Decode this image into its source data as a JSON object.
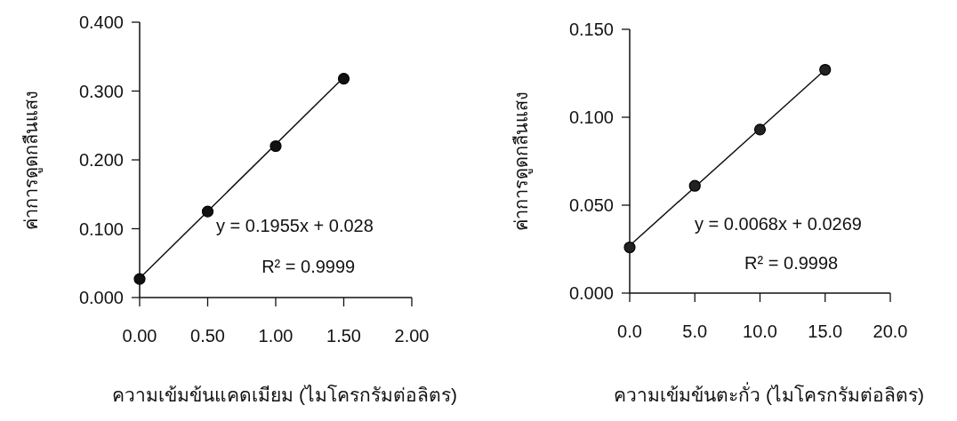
{
  "chart_data": [
    {
      "type": "scatter",
      "xlabel": "ความเข้มข้นแคดเมียม (ไมโครกรัมต่อลิตร)",
      "ylabel": "ค่าการดูดกลืนแสง",
      "x": [
        0,
        0.5,
        1.0,
        1.5
      ],
      "series": [
        {
          "type": "scatter",
          "color": "#111111",
          "marker": "circle",
          "values": [
            0.027,
            0.125,
            0.22,
            0.318
          ]
        },
        {
          "type": "line",
          "color": "#111111",
          "x": [
            0,
            1.5
          ],
          "values": [
            0.028,
            0.32
          ]
        }
      ],
      "line_style": "solid",
      "xlim": [
        0,
        2.0
      ],
      "xticks": [
        {
          "value": 0,
          "label": "0.00"
        },
        {
          "value": 0.5,
          "label": "0.50"
        },
        {
          "value": 1.0,
          "label": "1.00"
        },
        {
          "value": 1.5,
          "label": "1.50"
        },
        {
          "value": 2.0,
          "label": "2.00"
        }
      ],
      "ylim": [
        0,
        0.4
      ],
      "yticks": [
        {
          "value": 0,
          "label": "0.000"
        },
        {
          "value": 0.1,
          "label": "0.100"
        },
        {
          "value": 0.2,
          "label": "0.200"
        },
        {
          "value": 0.3,
          "label": "0.300"
        },
        {
          "value": 0.4,
          "label": "0.400"
        }
      ],
      "annotations": [
        "y = 0.1955x + 0.028",
        "R² = 0.9999"
      ]
    },
    {
      "type": "scatter",
      "xlabel": "ความเข้มข้นตะกั่ว (ไมโครกรัมต่อลิตร)",
      "ylabel": "ค่าการดูดกลืนแสง",
      "x": [
        0,
        5,
        10,
        15
      ],
      "series": [
        {
          "type": "scatter",
          "color": "#222222",
          "marker": "circle",
          "values": [
            0.026,
            0.061,
            0.093,
            0.127
          ]
        },
        {
          "type": "line",
          "color": "#111111",
          "x": [
            0,
            15
          ],
          "values": [
            0.027,
            0.127
          ]
        }
      ],
      "line_style": "solid",
      "xlim": [
        0,
        20
      ],
      "xticks": [
        {
          "value": 0,
          "label": "0.0"
        },
        {
          "value": 5,
          "label": "5.0"
        },
        {
          "value": 10,
          "label": "10.0"
        },
        {
          "value": 15,
          "label": "15.0"
        },
        {
          "value": 20,
          "label": "20.0"
        }
      ],
      "ylim": [
        0,
        0.15
      ],
      "yticks": [
        {
          "value": 0,
          "label": "0.000"
        },
        {
          "value": 0.05,
          "label": "0.050"
        },
        {
          "value": 0.1,
          "label": "0.100"
        },
        {
          "value": 0.15,
          "label": "0.150"
        }
      ],
      "annotations": [
        "y = 0.0068x + 0.0269",
        "R² = 0.9998"
      ]
    }
  ]
}
